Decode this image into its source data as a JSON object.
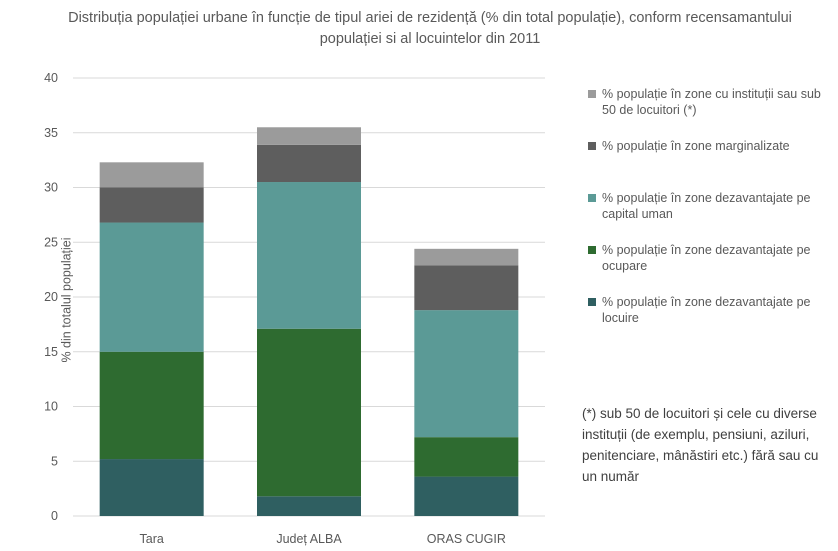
{
  "chart_data": {
    "type": "bar",
    "stacked": true,
    "title": "Distribuția populației urbane în funcție de tipul ariei de rezidență (% din total populație), conform recensamantului populației si al locuintelor din 2011",
    "ylabel": "% din totalul populației",
    "xlabel": "",
    "ylim": [
      0,
      40
    ],
    "yticks": [
      0,
      5,
      10,
      15,
      20,
      25,
      30,
      35,
      40
    ],
    "grid": true,
    "legend_position": "right",
    "categories": [
      "Tara",
      "Județ ALBA",
      "ORAS CUGIR"
    ],
    "series": [
      {
        "name": "% populație în zone dezavantajate pe locuire",
        "color": "#2f5f61",
        "values": [
          5.2,
          1.8,
          3.6
        ]
      },
      {
        "name": "% populație în zone dezavantajate pe ocupare",
        "color": "#2e6b30",
        "values": [
          9.8,
          15.3,
          3.6
        ]
      },
      {
        "name": "% populație în zone dezavantajate pe capital uman",
        "color": "#5b9a96",
        "values": [
          11.8,
          13.4,
          11.6
        ]
      },
      {
        "name": "% populație în zone marginalizate",
        "color": "#5e5e5e",
        "values": [
          3.2,
          3.4,
          4.1
        ]
      },
      {
        "name": "% populație în zone cu instituții sau sub 50 de locuitori (*)",
        "color": "#9b9b9b",
        "values": [
          2.3,
          1.6,
          1.5
        ]
      }
    ]
  },
  "legend_order": [
    4,
    3,
    2,
    1,
    0
  ],
  "footnote": "(*) sub 50 de locuitori și cele cu diverse instituții (de exemplu, pensiuni, aziluri, penitenciare, mânăstiri etc.) fără sau cu un număr"
}
